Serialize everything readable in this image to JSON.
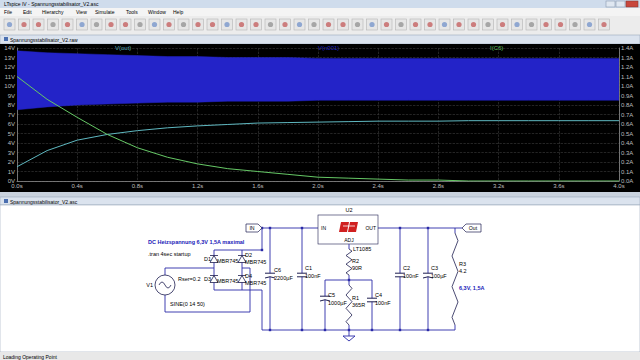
{
  "window": {
    "title": "LTspice IV - Spannungsstabilisator_V2.asc",
    "menu": [
      "File",
      "Edit",
      "Hierarchy",
      "View",
      "Simulate",
      "Tools",
      "Window",
      "Help"
    ],
    "status": "Loading Operating Point"
  },
  "plot_window": {
    "title": "Spannungsstabilisator_V2.raw"
  },
  "chart_data": {
    "type": "line",
    "grid": true,
    "x": [
      0,
      0.2,
      0.4,
      0.6,
      0.8,
      1.0,
      1.2,
      1.4,
      1.6,
      1.8,
      2.0,
      2.2,
      2.4,
      2.6,
      2.8,
      3.0,
      3.2,
      3.4,
      3.6,
      3.8,
      4.0
    ],
    "xlim": [
      0,
      4
    ],
    "xticks": [
      {
        "value": 0,
        "label": "0.0s"
      },
      {
        "value": 0.4,
        "label": "0.4s"
      },
      {
        "value": 0.8,
        "label": "0.8s"
      },
      {
        "value": 1.2,
        "label": "1.2s"
      },
      {
        "value": 1.6,
        "label": "1.6s"
      },
      {
        "value": 2.0,
        "label": "2.0s"
      },
      {
        "value": 2.4,
        "label": "2.4s"
      },
      {
        "value": 2.8,
        "label": "2.8s"
      },
      {
        "value": 3.2,
        "label": "3.2s"
      },
      {
        "value": 3.6,
        "label": "3.6s"
      },
      {
        "value": 4.0,
        "label": "4.0s"
      }
    ],
    "ylim": [
      0,
      14
    ],
    "yticks": [
      {
        "value": 0,
        "label": "0V"
      },
      {
        "value": 1,
        "label": "1V"
      },
      {
        "value": 2,
        "label": "2V"
      },
      {
        "value": 3,
        "label": "3V"
      },
      {
        "value": 4,
        "label": "4V"
      },
      {
        "value": 5,
        "label": "5V"
      },
      {
        "value": 6,
        "label": "6V"
      },
      {
        "value": 7,
        "label": "7V"
      },
      {
        "value": 8,
        "label": "8V"
      },
      {
        "value": 9,
        "label": "9V"
      },
      {
        "value": 10,
        "label": "10V"
      },
      {
        "value": 11,
        "label": "11V"
      },
      {
        "value": 12,
        "label": "12V"
      },
      {
        "value": 13,
        "label": "13V"
      },
      {
        "value": 14,
        "label": "14V"
      }
    ],
    "y2lim": [
      0,
      1.4
    ],
    "y2ticks": [
      {
        "value": 0,
        "label": "0.0A"
      },
      {
        "value": 0.1,
        "label": "0.1A"
      },
      {
        "value": 0.2,
        "label": "0.2A"
      },
      {
        "value": 0.3,
        "label": "0.3A"
      },
      {
        "value": 0.4,
        "label": "0.4A"
      },
      {
        "value": 0.5,
        "label": "0.5A"
      },
      {
        "value": 0.6,
        "label": "0.6A"
      },
      {
        "value": 0.7,
        "label": "0.7A"
      },
      {
        "value": 0.8,
        "label": "0.8A"
      },
      {
        "value": 0.9,
        "label": "0.9A"
      },
      {
        "value": 1.0,
        "label": "1.0A"
      },
      {
        "value": 1.1,
        "label": "1.1A"
      },
      {
        "value": 1.2,
        "label": "1.2A"
      },
      {
        "value": 1.3,
        "label": "1.3A"
      },
      {
        "value": 1.4,
        "label": "1.4A"
      }
    ],
    "series": [
      {
        "name": "V(out)",
        "color": "#5fb8c0",
        "values": [
          1.5,
          3.2,
          4.3,
          4.9,
          5.3,
          5.6,
          5.8,
          5.95,
          6.1,
          6.15,
          6.2,
          6.25,
          6.3,
          6.3,
          6.3,
          6.35,
          6.35,
          6.35,
          6.35,
          6.35,
          6.35
        ]
      },
      {
        "name": "V(n001)",
        "color": "#2323c8",
        "type": "band",
        "values": [
          13.7,
          13.5,
          13.4,
          13.3,
          13.2,
          13.1,
          13.1,
          13.0,
          13.0,
          13.0,
          12.9,
          12.9,
          12.9,
          12.9,
          12.9,
          12.9,
          12.9,
          12.9,
          12.9,
          12.9,
          12.9
        ],
        "low": [
          7.5,
          7.8,
          8.0,
          8.1,
          8.2,
          8.3,
          8.3,
          8.4,
          8.4,
          8.4,
          8.5,
          8.5,
          8.5,
          8.5,
          8.5,
          8.5,
          8.5,
          8.5,
          8.5,
          8.5,
          8.5
        ]
      },
      {
        "name": "I(C6)",
        "color": "#66c866",
        "axis": "y2",
        "values": [
          1.1,
          0.86,
          0.67,
          0.49,
          0.35,
          0.25,
          0.18,
          0.13,
          0.1,
          0.07,
          0.04,
          0.03,
          0.02,
          0.01,
          0.01,
          0.0,
          0.0,
          0.0,
          0.0,
          0.0,
          0.0
        ]
      }
    ]
  },
  "schematic": {
    "title": "Spannungsstabilisator_V2.asc",
    "comment": "DC Heizspannung 6,3V 1,5A maximal",
    "directive": ".tran 4sec startup",
    "load_note": "6,3V, 1,5A",
    "ports": {
      "input": "IN",
      "output": "Out"
    },
    "regulator": {
      "ref": "U2",
      "value": "LT1085",
      "pins": [
        "IN",
        "OUT",
        "ADJ"
      ]
    },
    "components": [
      {
        "ref": "V1",
        "value": "SINE(0 14 50)",
        "parameter": "Rser=0.2"
      },
      {
        "ref": "D1",
        "value": "MBR745"
      },
      {
        "ref": "D2",
        "value": "MBR745"
      },
      {
        "ref": "D3",
        "value": "MBR745"
      },
      {
        "ref": "D4",
        "value": "MBR745"
      },
      {
        "ref": "C6",
        "value": "2200µF"
      },
      {
        "ref": "C1",
        "value": "100nF"
      },
      {
        "ref": "C5",
        "value": "1000µF"
      },
      {
        "ref": "R2",
        "value": "90R"
      },
      {
        "ref": "R1",
        "value": "365R"
      },
      {
        "ref": "C4",
        "value": "100nF"
      },
      {
        "ref": "C2",
        "value": "100nF"
      },
      {
        "ref": "C3",
        "value": "100µF"
      },
      {
        "ref": "R3",
        "value": "4.2"
      }
    ]
  }
}
